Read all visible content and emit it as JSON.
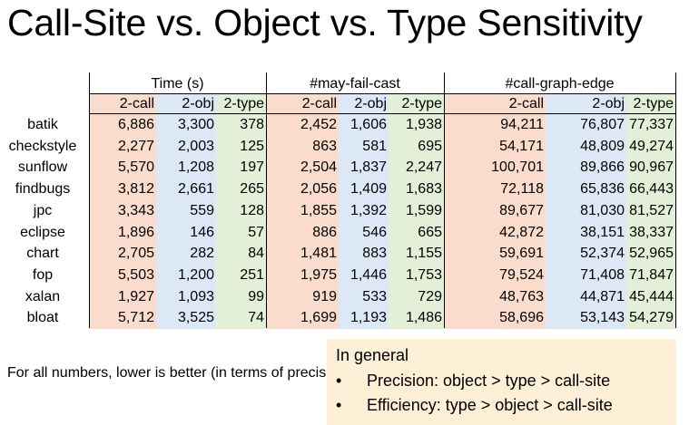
{
  "slide": {
    "title": "Call-Site vs. Object vs. Type Sensitivity",
    "footnote": "For all numbers, lower is better (in terms of precision or efficiency)"
  },
  "table": {
    "groups": [
      "Time (s)",
      "#may-fail-cast",
      "#call-graph-edge"
    ],
    "subheaders": [
      "2-call",
      "2-obj",
      "2-type",
      "2-call",
      "2-obj",
      "2-type",
      "2-call",
      "2-obj",
      "2-type"
    ],
    "rows": [
      {
        "name": "batik",
        "values": [
          "6,886",
          "3,300",
          "378",
          "2,452",
          "1,606",
          "1,938",
          "94,211",
          "76,807",
          "77,337"
        ]
      },
      {
        "name": "checkstyle",
        "values": [
          "2,277",
          "2,003",
          "125",
          "863",
          "581",
          "695",
          "54,171",
          "48,809",
          "49,274"
        ]
      },
      {
        "name": "sunflow",
        "values": [
          "5,570",
          "1,208",
          "197",
          "2,504",
          "1,837",
          "2,247",
          "100,701",
          "89,866",
          "90,967"
        ]
      },
      {
        "name": "findbugs",
        "values": [
          "3,812",
          "2,661",
          "265",
          "2,056",
          "1,409",
          "1,683",
          "72,118",
          "65,836",
          "66,443"
        ]
      },
      {
        "name": "jpc",
        "values": [
          "3,343",
          "559",
          "128",
          "1,855",
          "1,392",
          "1,599",
          "89,677",
          "81,030",
          "81,527"
        ]
      },
      {
        "name": "eclipse",
        "values": [
          "1,896",
          "146",
          "57",
          "886",
          "546",
          "665",
          "42,872",
          "38,151",
          "38,337"
        ]
      },
      {
        "name": "chart",
        "values": [
          "2,705",
          "282",
          "84",
          "1,481",
          "883",
          "1,155",
          "59,691",
          "52,374",
          "52,965"
        ]
      },
      {
        "name": "fop",
        "values": [
          "5,503",
          "1,200",
          "251",
          "1,975",
          "1,446",
          "1,753",
          "79,524",
          "71,408",
          "71,847"
        ]
      },
      {
        "name": "xalan",
        "values": [
          "1,927",
          "1,093",
          "99",
          "919",
          "533",
          "729",
          "48,763",
          "44,871",
          "45,444"
        ]
      },
      {
        "name": "bloat",
        "values": [
          "5,712",
          "3,525",
          "74",
          "1,699",
          "1,193",
          "1,486",
          "58,696",
          "53,143",
          "54,279"
        ]
      }
    ]
  },
  "summary": {
    "heading": "In general",
    "bullet_symbol": "•",
    "items": [
      "Precision: object > type > call-site",
      "Efficiency: type > object > call-site"
    ]
  },
  "colors": {
    "call_site_bg": "#f9dccb",
    "object_bg": "#dde8f6",
    "type_bg": "#e3efd7",
    "summary_bg": "#fdf0d6"
  }
}
